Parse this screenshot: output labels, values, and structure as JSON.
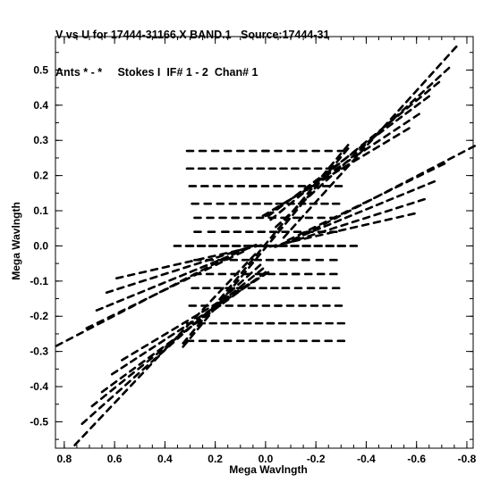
{
  "header": {
    "line1": "V vs U for 17444-31166.X BAND.1   Source:17444-31",
    "line2": "Ants * - *     Stokes I  IF# 1 - 2  Chan# 1"
  },
  "chart_data": {
    "type": "scatter",
    "xlabel": "Mega Wavlngth",
    "ylabel": "Mega Wavlngth",
    "xlim": [
      0.835,
      -0.825
    ],
    "ylim": [
      -0.575,
      0.595
    ],
    "xticks": [
      "0.8",
      "0.6",
      "0.4",
      "0.2",
      "0.0",
      "-0.2",
      "-0.4",
      "-0.6",
      "-0.8"
    ],
    "xtick_values": [
      0.8,
      0.6,
      0.4,
      0.2,
      0.0,
      -0.2,
      -0.4,
      -0.6,
      -0.8
    ],
    "yticks": [
      "0.5",
      "0.4",
      "0.3",
      "0.2",
      "0.1",
      "0.0",
      "-0.1",
      "-0.2",
      "-0.3",
      "-0.4",
      "-0.5"
    ],
    "ytick_values": [
      0.5,
      0.4,
      0.3,
      0.2,
      0.1,
      0.0,
      -0.1,
      -0.2,
      -0.3,
      -0.4,
      -0.5
    ],
    "grid": false,
    "marker_color": "#000000",
    "tracks": [
      {
        "u": [
          -0.75,
          -0.08
        ],
        "v": [
          0.56,
          0.03
        ]
      },
      {
        "u": [
          -0.72,
          -0.05
        ],
        "v": [
          0.5,
          0.06
        ]
      },
      {
        "u": [
          -0.68,
          -0.03
        ],
        "v": [
          0.46,
          0.08
        ]
      },
      {
        "u": [
          -0.64,
          -0.02
        ],
        "v": [
          0.42,
          0.09
        ]
      },
      {
        "u": [
          -0.6,
          -0.01
        ],
        "v": [
          0.37,
          0.09
        ]
      },
      {
        "u": [
          -0.56,
          -0.0
        ],
        "v": [
          0.33,
          0.09
        ]
      },
      {
        "u": [
          0.75,
          0.05
        ],
        "v": [
          -0.56,
          -0.03
        ]
      },
      {
        "u": [
          0.72,
          0.03
        ],
        "v": [
          -0.5,
          -0.06
        ]
      },
      {
        "u": [
          0.68,
          0.02
        ],
        "v": [
          -0.45,
          -0.07
        ]
      },
      {
        "u": [
          0.64,
          0.01
        ],
        "v": [
          -0.41,
          -0.08
        ]
      },
      {
        "u": [
          0.6,
          0.0
        ],
        "v": [
          -0.36,
          -0.08
        ]
      },
      {
        "u": [
          0.56,
          -0.0
        ],
        "v": [
          -0.32,
          -0.08
        ]
      },
      {
        "u": [
          -0.82,
          -0.12
        ],
        "v": [
          0.28,
          0.02
        ]
      },
      {
        "u": [
          -0.7,
          -0.1
        ],
        "v": [
          0.23,
          0.02
        ]
      },
      {
        "u": [
          -0.66,
          -0.08
        ],
        "v": [
          0.18,
          0.01
        ]
      },
      {
        "u": [
          -0.62,
          -0.05
        ],
        "v": [
          0.13,
          0.0
        ]
      },
      {
        "u": [
          -0.58,
          -0.03
        ],
        "v": [
          0.09,
          -0.0
        ]
      },
      {
        "u": [
          0.82,
          0.12
        ],
        "v": [
          -0.28,
          -0.02
        ]
      },
      {
        "u": [
          0.7,
          0.1
        ],
        "v": [
          -0.23,
          -0.02
        ]
      },
      {
        "u": [
          0.66,
          0.08
        ],
        "v": [
          -0.18,
          -0.01
        ]
      },
      {
        "u": [
          0.62,
          0.05
        ],
        "v": [
          -0.13,
          -0.0
        ]
      },
      {
        "u": [
          0.58,
          0.03
        ],
        "v": [
          -0.09,
          0.0
        ]
      },
      {
        "u": [
          -0.32,
          0.32
        ],
        "v": [
          0.28,
          -0.27
        ]
      },
      {
        "u": [
          0.32,
          -0.32
        ],
        "v": [
          -0.28,
          0.27
        ]
      }
    ],
    "spokes": {
      "v": [
        0.27,
        0.22,
        0.17,
        0.12,
        0.08,
        0.04,
        0.0,
        -0.04,
        -0.08,
        -0.12,
        -0.17,
        -0.22,
        -0.27
      ],
      "u_outer": [
        -0.3,
        -0.3,
        -0.29,
        -0.28,
        -0.27,
        -0.27,
        -0.3,
        -0.27,
        -0.27,
        -0.28,
        -0.29,
        -0.3,
        -0.3
      ],
      "u_inner": [
        0.0,
        0.02,
        0.05,
        0.08,
        0.12,
        0.16,
        0.35,
        -0.16,
        -0.12,
        -0.08,
        -0.05,
        -0.02,
        0.0
      ]
    }
  }
}
